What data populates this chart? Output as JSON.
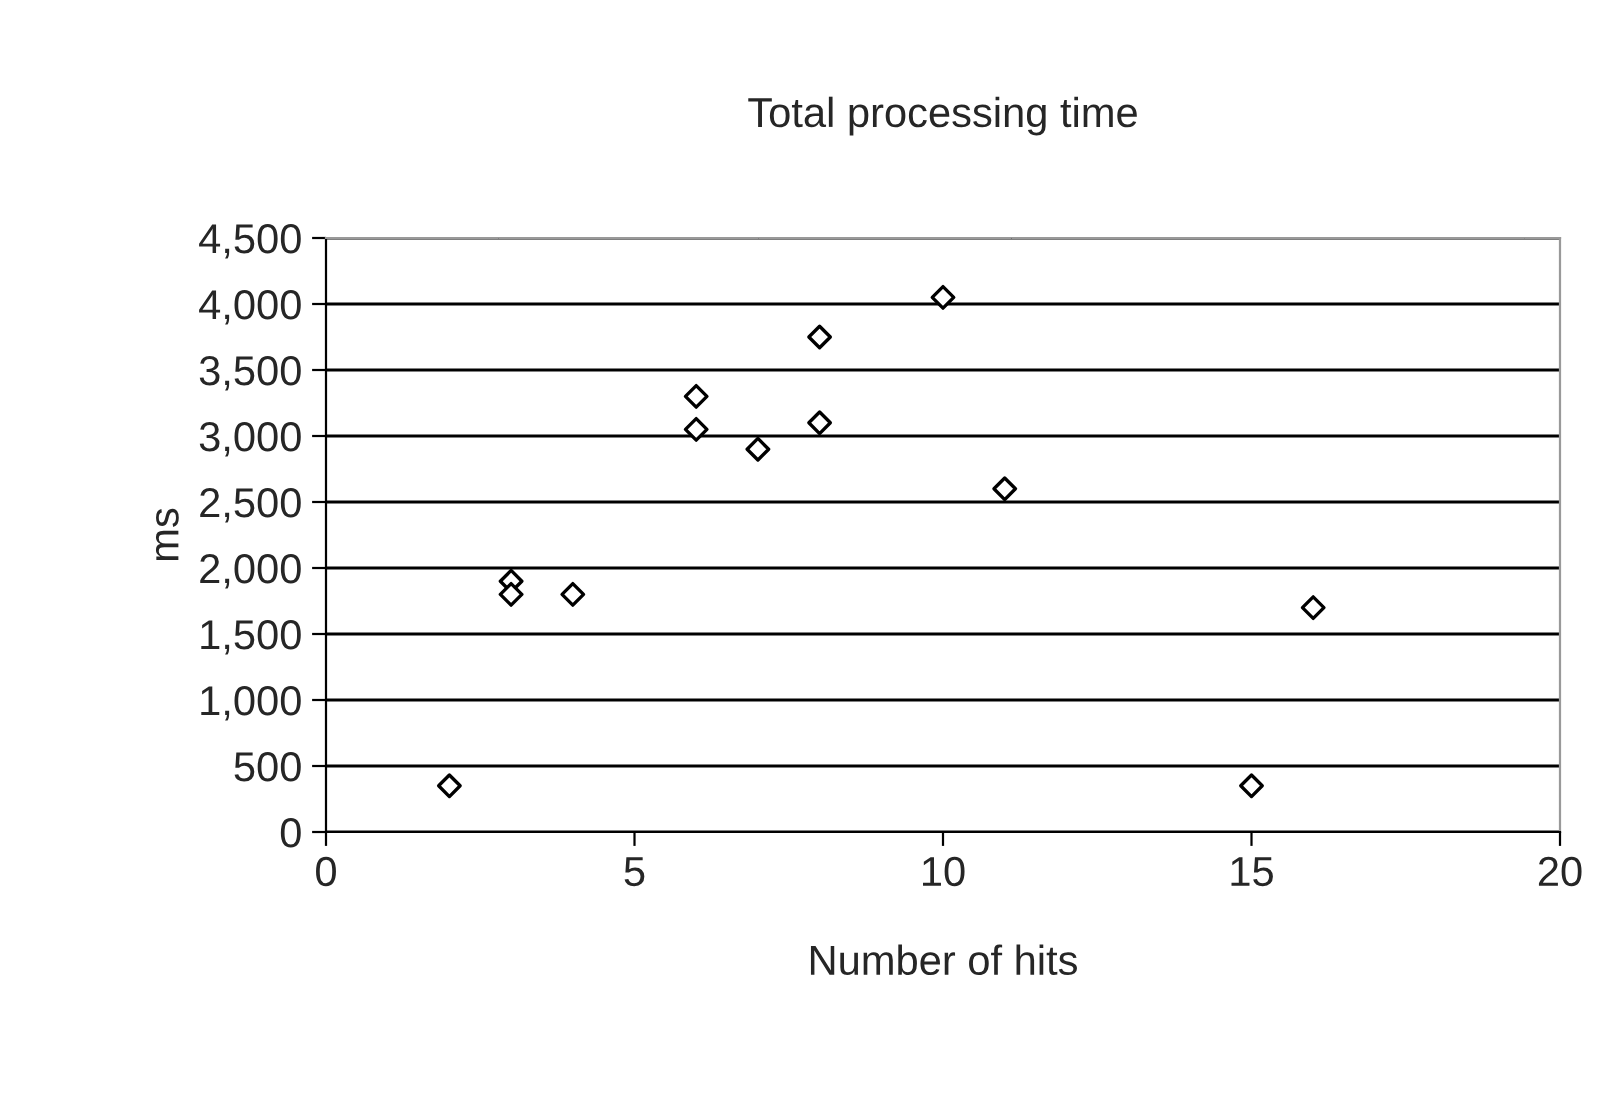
{
  "chart_data": {
    "type": "scatter",
    "title": "Total processing time",
    "xlabel": "Number of hits",
    "ylabel": "ms",
    "x": [
      2,
      3,
      3,
      4,
      6,
      6,
      7,
      8,
      8,
      10,
      11,
      15,
      16
    ],
    "values": [
      350,
      1900,
      1800,
      1800,
      3300,
      3050,
      2900,
      3750,
      3100,
      4050,
      2600,
      350,
      1700
    ],
    "color": "#000000",
    "marker": "diamond",
    "xlim": [
      0,
      20
    ],
    "xticks": [
      0,
      5,
      10,
      15,
      20
    ],
    "ylim": [
      0,
      4500
    ],
    "yticks": [
      {
        "value": 0,
        "label": "0"
      },
      {
        "value": 500,
        "label": "500"
      },
      {
        "value": 1000,
        "label": "1,000"
      },
      {
        "value": 1500,
        "label": "1,500"
      },
      {
        "value": 2000,
        "label": "2,000"
      },
      {
        "value": 2500,
        "label": "2,500"
      },
      {
        "value": 3000,
        "label": "3,000"
      },
      {
        "value": 3500,
        "label": "3,500"
      },
      {
        "value": 4000,
        "label": "4,000"
      },
      {
        "value": 4500,
        "label": "4,500"
      }
    ],
    "grid": "y",
    "legend": false
  }
}
